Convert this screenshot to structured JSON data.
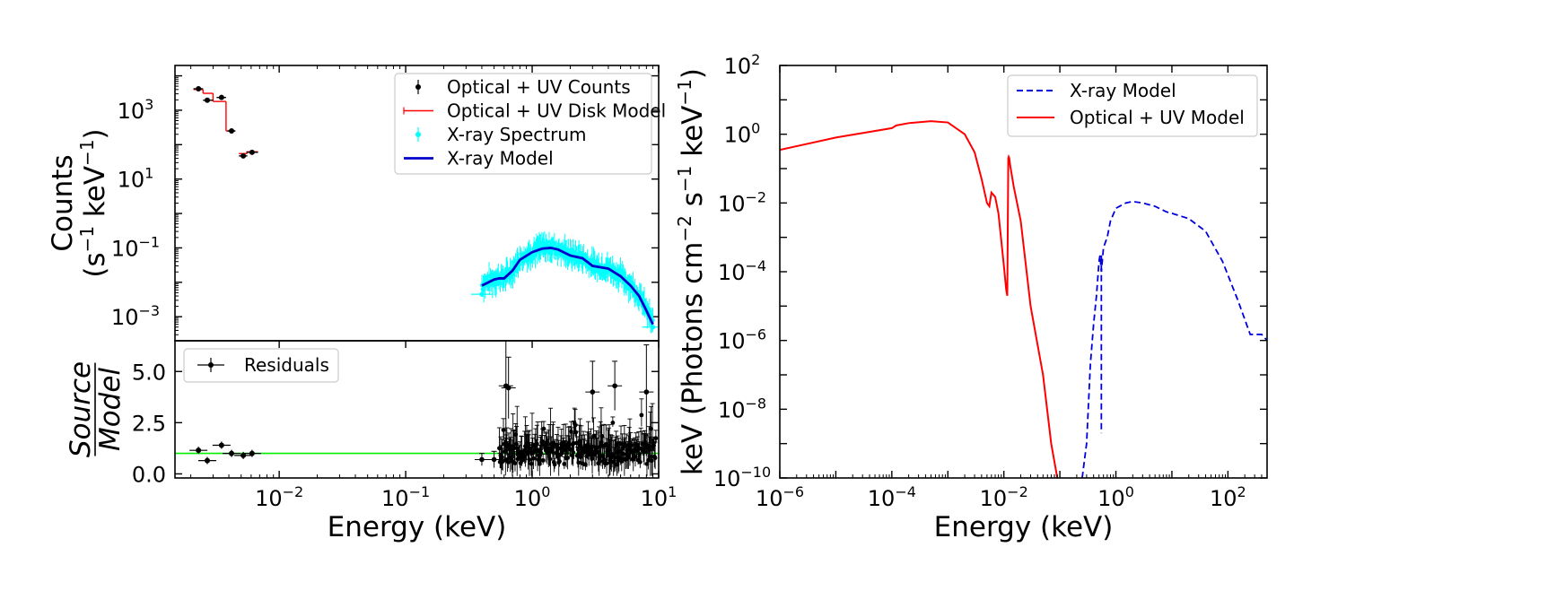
{
  "chart_data": [
    {
      "panel": "top-left",
      "type": "scatter",
      "x_scale": "log",
      "y_scale": "log",
      "xlim": [
        0.0015,
        10
      ],
      "ylim": [
        0.0002,
        20000
      ],
      "y_ticks": [
        {
          "value": 0.001,
          "base": "10",
          "exp": "−3"
        },
        {
          "value": 0.1,
          "base": "10",
          "exp": "−1"
        },
        {
          "value": 10,
          "base": "10",
          "exp": "1"
        },
        {
          "value": 1000,
          "base": "10",
          "exp": "3"
        }
      ],
      "ylabel_line1": "Counts",
      "ylabel_line2": "(s",
      "ylabel_sup1": "−1",
      "ylabel_mid": " keV",
      "ylabel_sup2": "−1",
      "ylabel_end": ")",
      "legend_position": "top-right",
      "legend": [
        {
          "label": "Optical + UV Counts",
          "color": "#000000",
          "style": "errorbar-point"
        },
        {
          "label": "Optical + UV Disk Model",
          "color": "#ff0000",
          "style": "step"
        },
        {
          "label": "X-ray Spectrum",
          "color": "#00ffff",
          "style": "errorbar-point"
        },
        {
          "label": "X-ray Model",
          "color": "#0000cc",
          "style": "line"
        }
      ],
      "series": [
        {
          "name": "Optical + UV Counts",
          "color": "#000000",
          "points": [
            {
              "x": 0.0023,
              "y": 4200,
              "xerr": [
                0.0021,
                0.0025
              ]
            },
            {
              "x": 0.0027,
              "y": 1950,
              "xerr": [
                0.0025,
                0.003
              ]
            },
            {
              "x": 0.0035,
              "y": 2350,
              "xerr": [
                0.0032,
                0.0038
              ]
            },
            {
              "x": 0.0042,
              "y": 250,
              "xerr": [
                0.0039,
                0.0045
              ]
            },
            {
              "x": 0.0052,
              "y": 47,
              "xerr": [
                0.0048,
                0.0056
              ]
            },
            {
              "x": 0.0061,
              "y": 60,
              "xerr": [
                0.0055,
                0.0068
              ]
            }
          ]
        },
        {
          "name": "Optical + UV Disk Model",
          "color": "#ff0000",
          "segments": [
            {
              "x0": 0.0021,
              "x1": 0.0025,
              "y": 4000
            },
            {
              "x0": 0.0025,
              "x1": 0.003,
              "y": 3100
            },
            {
              "x0": 0.003,
              "x1": 0.0038,
              "y": 1800
            },
            {
              "x0": 0.0038,
              "x1": 0.0045,
              "y": 250
            },
            {
              "x0": 0.0048,
              "x1": 0.0056,
              "y": 55
            },
            {
              "x0": 0.0055,
              "x1": 0.0068,
              "y": 62
            }
          ]
        },
        {
          "name": "X-ray Model",
          "color": "#0000cc",
          "x": [
            0.4,
            0.5,
            0.55,
            0.6,
            0.7,
            0.8,
            1.0,
            1.2,
            1.4,
            1.6,
            2.0,
            2.5,
            3.0,
            4.0,
            5.0,
            6.0,
            7.0,
            8.0,
            9.0
          ],
          "y": [
            0.008,
            0.012,
            0.013,
            0.013,
            0.022,
            0.045,
            0.075,
            0.095,
            0.1,
            0.09,
            0.06,
            0.05,
            0.03,
            0.025,
            0.015,
            0.008,
            0.004,
            0.0015,
            0.0006
          ]
        },
        {
          "name": "X-ray Spectrum",
          "color": "#00ffff",
          "note_only": false,
          "x_range": [
            0.4,
            9.0
          ],
          "follows": "X-ray Model"
        }
      ]
    },
    {
      "panel": "bottom-left",
      "type": "scatter",
      "x_scale": "log",
      "y_scale": "linear",
      "xlim": [
        0.0015,
        10
      ],
      "ylim": [
        -0.2,
        6.5
      ],
      "x_ticks": [
        {
          "value": 0.01,
          "base": "10",
          "exp": "−2"
        },
        {
          "value": 0.1,
          "base": "10",
          "exp": "−1"
        },
        {
          "value": 1,
          "base": "10",
          "exp": "0"
        },
        {
          "value": 10,
          "base": "10",
          "exp": "1"
        }
      ],
      "y_ticks": [
        {
          "value": 0.0,
          "label": "0.0"
        },
        {
          "value": 2.5,
          "label": "2.5"
        },
        {
          "value": 5.0,
          "label": "5.0"
        }
      ],
      "xlabel": "Energy (keV)",
      "ylabel_top": "Source",
      "ylabel_bottom": "Model",
      "reference_line": {
        "y": 1.0,
        "color": "#00ee00"
      },
      "legend_position": "top-left",
      "legend": [
        {
          "label": "Residuals",
          "color": "#000000",
          "style": "errorbar-point"
        }
      ],
      "series": [
        {
          "name": "Residuals",
          "color": "#000000",
          "optical_points": [
            {
              "x": 0.0023,
              "y": 1.15
            },
            {
              "x": 0.0027,
              "y": 0.65
            },
            {
              "x": 0.0035,
              "y": 1.4
            },
            {
              "x": 0.0042,
              "y": 1.0
            },
            {
              "x": 0.0052,
              "y": 0.9
            },
            {
              "x": 0.0061,
              "y": 1.0
            }
          ],
          "xray_highlights": [
            {
              "x": 0.4,
              "y": 0.7,
              "err": 0.3
            },
            {
              "x": 0.5,
              "y": 0.7,
              "err": 0.4
            },
            {
              "x": 0.62,
              "y": 4.3,
              "err": 2.7
            },
            {
              "x": 0.65,
              "y": 4.2,
              "err": 1.5
            },
            {
              "x": 3.0,
              "y": 4.0,
              "err": 1.5
            },
            {
              "x": 4.5,
              "y": 4.3,
              "err": 1.2
            },
            {
              "x": 8.0,
              "y": 4.0,
              "err": 2.3
            }
          ]
        }
      ]
    },
    {
      "panel": "right",
      "type": "line",
      "x_scale": "log",
      "y_scale": "log",
      "xlim": [
        1e-06,
        500
      ],
      "ylim": [
        1e-10,
        100
      ],
      "x_ticks": [
        {
          "value": 1e-06,
          "base": "10",
          "exp": "−6"
        },
        {
          "value": 0.0001,
          "base": "10",
          "exp": "−4"
        },
        {
          "value": 0.01,
          "base": "10",
          "exp": "−2"
        },
        {
          "value": 1,
          "base": "10",
          "exp": "0"
        },
        {
          "value": 100,
          "base": "10",
          "exp": "2"
        }
      ],
      "y_ticks": [
        {
          "value": 1e-10,
          "base": "10",
          "exp": "−10"
        },
        {
          "value": 1e-08,
          "base": "10",
          "exp": "−8"
        },
        {
          "value": 1e-06,
          "base": "10",
          "exp": "−6"
        },
        {
          "value": 0.0001,
          "base": "10",
          "exp": "−4"
        },
        {
          "value": 0.01,
          "base": "10",
          "exp": "−2"
        },
        {
          "value": 1,
          "base": "10",
          "exp": "0"
        },
        {
          "value": 100,
          "base": "10",
          "exp": "2"
        }
      ],
      "xlabel": "Energy (keV)",
      "ylabel_a": "keV (Photons cm",
      "ylabel_sup1": "−2",
      "ylabel_b": " s",
      "ylabel_sup2": "−1",
      "ylabel_c": " keV",
      "ylabel_sup3": "−1",
      "ylabel_d": ")",
      "legend_position": "top-right",
      "legend": [
        {
          "label": "X-ray Model",
          "color": "#0000dd",
          "style": "dashed"
        },
        {
          "label": "Optical + UV Model",
          "color": "#ff0000",
          "style": "solid"
        }
      ],
      "series": [
        {
          "name": "Optical + UV Model",
          "color": "#ff0000",
          "x": [
            1e-06,
            1e-05,
            0.0001,
            0.00012,
            0.0002,
            0.0005,
            0.001,
            0.002,
            0.003,
            0.004,
            0.005,
            0.0055,
            0.006,
            0.007,
            0.008,
            0.009,
            0.01,
            0.011,
            0.0115,
            0.012,
            0.0122,
            0.0125,
            0.013,
            0.015,
            0.02,
            0.03,
            0.05,
            0.07,
            0.09,
            0.1
          ],
          "y": [
            0.35,
            0.8,
            1.5,
            1.8,
            2.1,
            2.4,
            2.2,
            1.0,
            0.3,
            0.05,
            0.01,
            0.008,
            0.02,
            0.015,
            0.005,
            0.0008,
            0.00015,
            3e-05,
            2e-05,
            0.2,
            0.22,
            0.2,
            0.12,
            0.03,
            0.003,
            1e-05,
            1e-07,
            1e-09,
            1e-10,
            3e-11
          ]
        },
        {
          "name": "X-ray Model",
          "color": "#0000dd",
          "x": [
            0.25,
            0.3,
            0.35,
            0.4,
            0.45,
            0.5,
            0.52,
            0.55,
            0.6,
            0.7,
            0.8,
            1.0,
            1.5,
            2.0,
            3.0,
            5.0,
            8.0,
            10,
            20,
            40,
            80,
            150,
            250,
            400,
            500
          ],
          "y": [
            1e-10,
            1e-09,
            2e-07,
            3e-06,
            2e-05,
            0.0002,
            0.0003,
            0.0001,
            0.0005,
            0.001,
            0.003,
            0.007,
            0.01,
            0.011,
            0.01,
            0.008,
            0.0055,
            0.005,
            0.0035,
            0.0015,
            0.0002,
            1.5e-05,
            1.5e-06,
            1.5e-06,
            1e-06
          ],
          "dip": {
            "x": 0.55,
            "y_top": 0.0003,
            "y_bottom": 2e-09
          }
        }
      ]
    }
  ]
}
